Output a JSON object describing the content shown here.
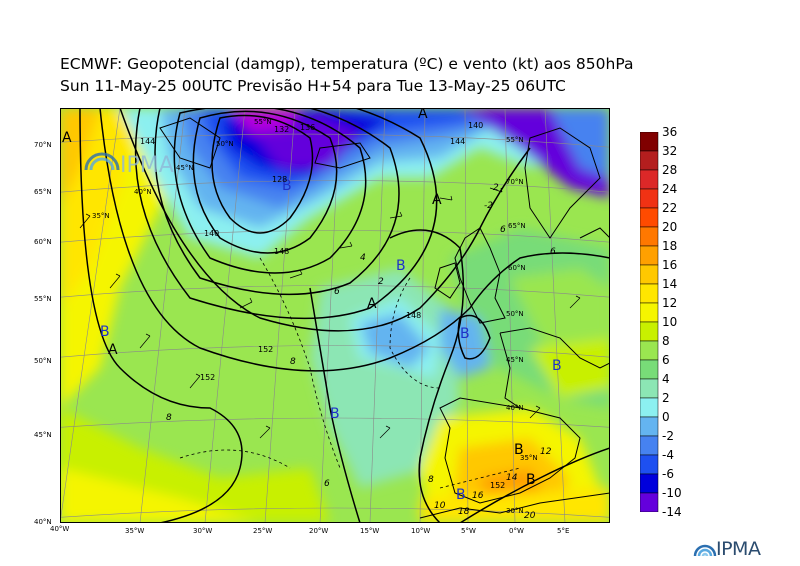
{
  "header": {
    "title_line1": "ECMWF:  Geopotencial (damgp), temperatura (ºC) e vento (kt) aos 850hPa",
    "title_line2": "Sun 11-May-25 00UTC Previsão H+54 para Tue 13-May-25 06UTC"
  },
  "branding": {
    "logo_text": "IPMA",
    "map_watermark": "IPMA"
  },
  "map": {
    "lat_labels": [
      "70°N",
      "65°N",
      "60°N",
      "55°N",
      "50°N",
      "45°N",
      "40°N"
    ],
    "lon_labels": [
      "40°W",
      "35°W",
      "30°W",
      "25°W",
      "20°W",
      "15°W",
      "10°W",
      "5°W",
      "0°W",
      "5°E"
    ],
    "inner_lat_labels": [
      "35°N",
      "40°N",
      "45°N",
      "50°N",
      "55°N",
      "60°N",
      "65°N",
      "70°N",
      "55°N",
      "45°N",
      "50°N",
      "40°N",
      "35°N",
      "30°N"
    ],
    "pressure_centers": [
      {
        "label": "A"
      },
      {
        "label": "A"
      },
      {
        "label": "A"
      },
      {
        "label": "A"
      },
      {
        "label": "A"
      },
      {
        "label": "B"
      },
      {
        "label": "B"
      },
      {
        "label": "B"
      },
      {
        "label": "B"
      },
      {
        "label": "B"
      },
      {
        "label": "B"
      },
      {
        "label": "B"
      },
      {
        "label": "B"
      },
      {
        "label": "B"
      }
    ],
    "geopotential_labels": [
      "152",
      "152",
      "148",
      "144",
      "140",
      "136",
      "132",
      "128",
      "140",
      "144",
      "148",
      "152"
    ],
    "temperature_labels": [
      "8",
      "8",
      "6",
      "6",
      "4",
      "2",
      "2",
      "-2",
      "6",
      "12",
      "14",
      "16",
      "18",
      "10",
      "20",
      "8",
      "6",
      "12"
    ]
  },
  "legend": {
    "title": "",
    "levels": [
      "36",
      "32",
      "28",
      "24",
      "22",
      "20",
      "18",
      "16",
      "14",
      "12",
      "10",
      "8",
      "6",
      "4",
      "2",
      "0",
      "-2",
      "-4",
      "-6",
      "-10",
      "-14"
    ],
    "colors": [
      "#800000",
      "#b41e1e",
      "#dc2828",
      "#f03214",
      "#ff4b00",
      "#ff7800",
      "#ffa000",
      "#ffc800",
      "#ffe600",
      "#f5f500",
      "#c8f000",
      "#9ae650",
      "#78dc78",
      "#8ce6b4",
      "#8cf0f0",
      "#64b4f0",
      "#4682f0",
      "#1e50f0",
      "#0000dc",
      "#6400dc",
      "#b400dc",
      "#f000f0"
    ]
  },
  "colors": {
    "geopotential_contour": "#000000",
    "coastline": "#000000"
  }
}
